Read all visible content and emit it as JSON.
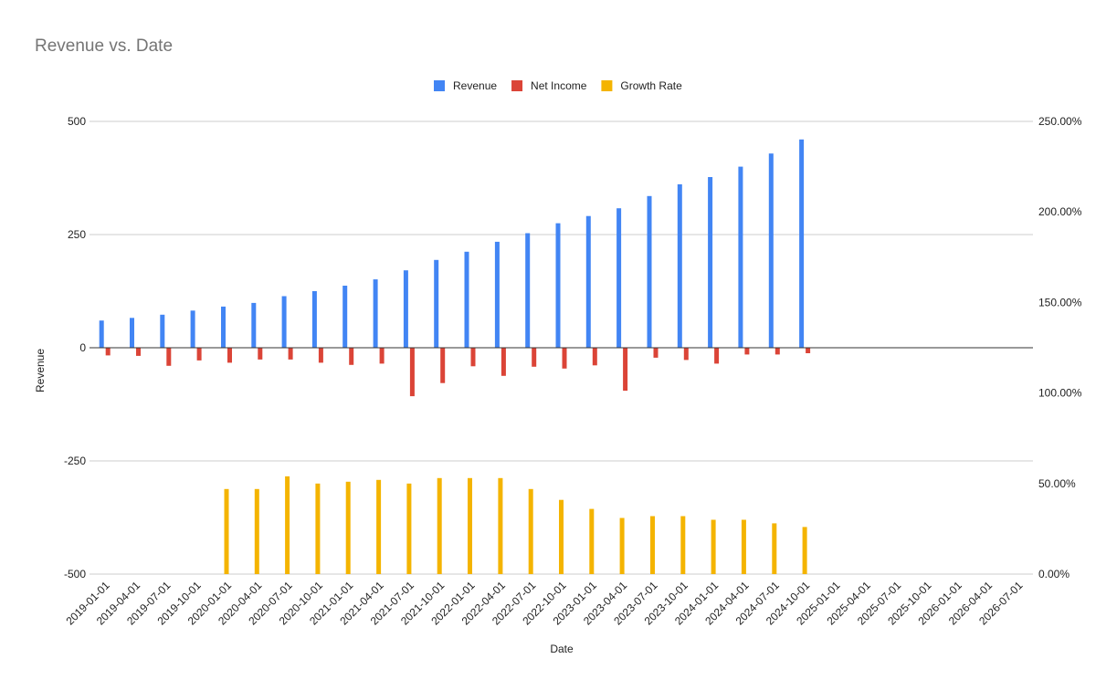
{
  "chart_data": {
    "type": "bar",
    "title": "Revenue vs. Date",
    "xlabel": "Date",
    "ylabel": "Revenue",
    "y2label": "",
    "ylim": [
      -500,
      500
    ],
    "yticks": [
      "500",
      "250",
      "0",
      "-250",
      "-500"
    ],
    "y2lim": [
      0,
      2.5
    ],
    "y2ticks": [
      "250.00%",
      "200.00%",
      "150.00%",
      "100.00%",
      "50.00%",
      "0.00%"
    ],
    "grid": true,
    "legend_position": "top",
    "x": [
      "2019-01-01",
      "2019-04-01",
      "2019-07-01",
      "2019-10-01",
      "2020-01-01",
      "2020-04-01",
      "2020-07-01",
      "2020-10-01",
      "2021-01-01",
      "2021-04-01",
      "2021-07-01",
      "2021-10-01",
      "2022-01-01",
      "2022-04-01",
      "2022-07-01",
      "2022-10-01",
      "2023-01-01",
      "2023-04-01",
      "2023-07-01",
      "2023-10-01",
      "2024-01-01",
      "2024-04-01",
      "2024-07-01",
      "2024-10-01",
      "2025-01-01",
      "2025-04-01",
      "2025-07-01",
      "2025-10-01",
      "2026-01-01",
      "2026-04-01",
      "2026-07-01"
    ],
    "series": [
      {
        "name": "Revenue",
        "axis": "left",
        "color": "#4285F4",
        "values": [
          60,
          66,
          73,
          82,
          91,
          99,
          114,
          125,
          137,
          151,
          171,
          194,
          212,
          234,
          253,
          275,
          291,
          308,
          335,
          361,
          377,
          400,
          429,
          460,
          null,
          null,
          null,
          null,
          null,
          null,
          null
        ]
      },
      {
        "name": "Net Income",
        "axis": "left",
        "color": "#DB4437",
        "values": [
          -17,
          -18,
          -40,
          -28,
          -33,
          -26,
          -26,
          -33,
          -38,
          -35,
          -107,
          -78,
          -41,
          -62,
          -42,
          -46,
          -39,
          -95,
          -22,
          -27,
          -35,
          -15,
          -15,
          -12,
          null,
          null,
          null,
          null,
          null,
          null,
          null
        ]
      },
      {
        "name": "Growth Rate",
        "axis": "right",
        "color": "#F4B400",
        "values": [
          null,
          null,
          null,
          null,
          0.47,
          0.47,
          0.54,
          0.5,
          0.51,
          0.52,
          0.5,
          0.53,
          0.53,
          0.53,
          0.47,
          0.41,
          0.36,
          0.31,
          0.32,
          0.32,
          0.3,
          0.3,
          0.28,
          0.26,
          null,
          null,
          null,
          null,
          null,
          null,
          null
        ]
      }
    ]
  }
}
